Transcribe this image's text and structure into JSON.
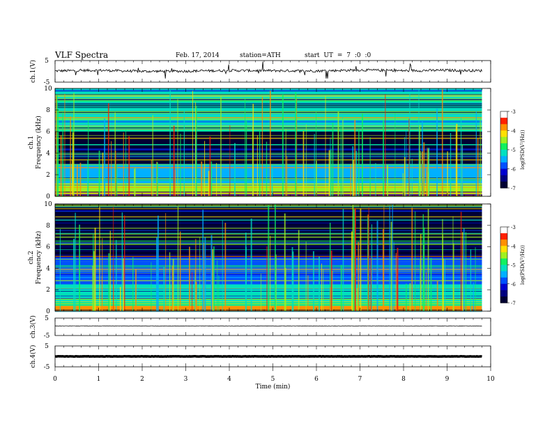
{
  "header": {
    "title": "VLF  Spectra",
    "date": "Feb. 17, 2014",
    "station": "station=ATH",
    "start": "start  UT  =   7  :0  :0"
  },
  "colors": {
    "spectrum_scale": [
      "#000033",
      "#000080",
      "#0000d0",
      "#0050ff",
      "#00b0ff",
      "#00e0c0",
      "#10f060",
      "#a0f020",
      "#ffe000",
      "#ff9000",
      "#ff2000",
      "#ffffff"
    ],
    "axis": "#000000",
    "background": "#ffffff"
  },
  "chart_data": [
    {
      "type": "line",
      "panel": "ch1-waveform",
      "ylabel": "ch.1(V)",
      "ylim": [
        -5,
        5
      ],
      "yticks": [
        "5",
        "-5"
      ],
      "x": [
        0,
        1,
        2,
        3,
        4,
        5,
        6,
        7,
        8,
        9,
        9.8
      ],
      "series": [
        {
          "values": [
            0.2,
            0.5,
            0.0,
            0.1,
            0.4,
            0.3,
            0.2,
            0.6,
            0.3,
            0.5,
            0.3
          ]
        }
      ]
    },
    {
      "type": "heatmap",
      "panel": "ch1-spectrogram",
      "ylabel": "ch.1 Frequency (kHz)",
      "ylim": [
        0,
        10
      ],
      "yticks": [
        "0",
        "2",
        "4",
        "6",
        "8",
        "10"
      ],
      "colorbar": {
        "label": "log(PSD(V²/Hz))",
        "ticks": [
          "-3",
          "-4",
          "-5",
          "-6",
          "-7"
        ],
        "range": [
          -7,
          -3
        ]
      },
      "bands": [
        {
          "f": [
            0,
            0.4
          ],
          "level": -3.5
        },
        {
          "f": [
            0.4,
            1.2
          ],
          "level": -4.6
        },
        {
          "f": [
            1.2,
            3.0
          ],
          "level": -5.6
        },
        {
          "f": [
            3.0,
            6.0
          ],
          "level": -6.8
        },
        {
          "f": [
            6.0,
            10
          ],
          "level": -5.2
        }
      ]
    },
    {
      "type": "heatmap",
      "panel": "ch2-spectrogram",
      "ylabel": "ch.2 Frequency (kHz)",
      "ylim": [
        0,
        10
      ],
      "yticks": [
        "0",
        "2",
        "4",
        "6",
        "8",
        "10"
      ],
      "colorbar": {
        "label": "log(PSD(V²/Hz))",
        "ticks": [
          "-3",
          "-4",
          "-5",
          "-6",
          "-7"
        ],
        "range": [
          -7,
          -3
        ]
      },
      "bands": [
        {
          "f": [
            0,
            0.5
          ],
          "level": -3.8
        },
        {
          "f": [
            0.5,
            2.5
          ],
          "level": -5.3
        },
        {
          "f": [
            2.5,
            5.0
          ],
          "level": -6.0
        },
        {
          "f": [
            5.0,
            10
          ],
          "level": -6.7
        }
      ]
    },
    {
      "type": "line",
      "panel": "ch3-waveform",
      "ylabel": "ch.3(V)",
      "ylim": [
        -5,
        5
      ],
      "yticks": [
        "5",
        "-5"
      ],
      "x": [
        0,
        9.8
      ],
      "series": [
        {
          "values": [
            0.5,
            0.5
          ]
        }
      ]
    },
    {
      "type": "line",
      "panel": "ch4-waveform",
      "ylabel": "ch.4(V)",
      "ylim": [
        -5,
        5
      ],
      "yticks": [
        "5",
        "-5"
      ],
      "x": [
        0,
        9.8
      ],
      "series": [
        {
          "values": [
            0,
            0
          ]
        }
      ]
    }
  ],
  "x_axis": {
    "label": "Time  (min)",
    "range": [
      0,
      10
    ],
    "ticks": [
      "0",
      "1",
      "2",
      "3",
      "4",
      "5",
      "6",
      "7",
      "8",
      "9",
      "10"
    ]
  }
}
